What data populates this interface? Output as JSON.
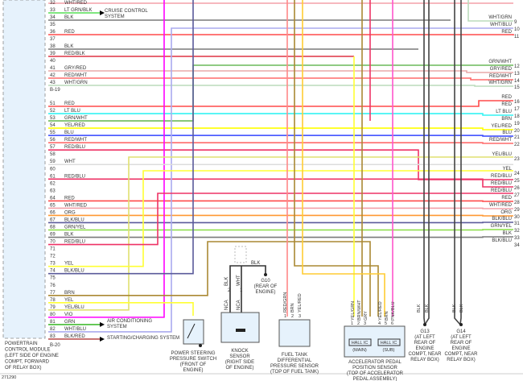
{
  "pcm": {
    "label_lines": [
      "POWERTRAIN",
      "CONTROL MODULE",
      "(LEFT SIDE OF ENGINE",
      "COMPT, FORWARD",
      "OF RELAY BOX)"
    ],
    "connectors": [
      "B-19",
      "B-20"
    ],
    "pins_a": [
      {
        "pin": "32",
        "wire": "WHT/RED"
      },
      {
        "pin": "33",
        "wire": "LT GRN/BLK"
      },
      {
        "pin": "34",
        "wire": "BLK"
      },
      {
        "pin": "35",
        "wire": ""
      },
      {
        "pin": "36",
        "wire": "RED"
      },
      {
        "pin": "37",
        "wire": ""
      },
      {
        "pin": "38",
        "wire": "BLK"
      },
      {
        "pin": "39",
        "wire": "RED/BLK"
      },
      {
        "pin": "40",
        "wire": ""
      },
      {
        "pin": "41",
        "wire": "GRY/RED"
      },
      {
        "pin": "42",
        "wire": "RED/WHT"
      },
      {
        "pin": "43",
        "wire": "WHT/GRN"
      }
    ],
    "pins_b": [
      {
        "pin": "51",
        "wire": "RED"
      },
      {
        "pin": "52",
        "wire": "LT BLU"
      },
      {
        "pin": "53",
        "wire": "GRN/WHT"
      },
      {
        "pin": "54",
        "wire": "YEL/RED"
      },
      {
        "pin": "55",
        "wire": "BLU"
      },
      {
        "pin": "56",
        "wire": "RED/WHT"
      },
      {
        "pin": "57",
        "wire": "RED/BLU"
      },
      {
        "pin": "58",
        "wire": ""
      },
      {
        "pin": "59",
        "wire": "WHT"
      },
      {
        "pin": "60",
        "wire": ""
      },
      {
        "pin": "61",
        "wire": "RED/BLU"
      },
      {
        "pin": "62",
        "wire": ""
      },
      {
        "pin": "63",
        "wire": ""
      },
      {
        "pin": "64",
        "wire": "RED"
      },
      {
        "pin": "65",
        "wire": "WHT/RED"
      },
      {
        "pin": "66",
        "wire": "ORG"
      },
      {
        "pin": "67",
        "wire": "BLK/BLU"
      },
      {
        "pin": "68",
        "wire": "GRN/YEL"
      },
      {
        "pin": "69",
        "wire": "BLK"
      },
      {
        "pin": "70",
        "wire": "RED/BLU"
      },
      {
        "pin": "71",
        "wire": ""
      },
      {
        "pin": "72",
        "wire": ""
      },
      {
        "pin": "73",
        "wire": "YEL"
      },
      {
        "pin": "74",
        "wire": "BLK/BLU"
      },
      {
        "pin": "75",
        "wire": ""
      },
      {
        "pin": "76",
        "wire": ""
      },
      {
        "pin": "77",
        "wire": "BRN"
      },
      {
        "pin": "78",
        "wire": "YEL"
      },
      {
        "pin": "79",
        "wire": "YEL/BLU"
      },
      {
        "pin": "80",
        "wire": "VIO"
      },
      {
        "pin": "81",
        "wire": "GRN"
      },
      {
        "pin": "82",
        "wire": "WHT/BLU"
      },
      {
        "pin": "83",
        "wire": "BLK/RED"
      }
    ]
  },
  "right_pins": [
    {
      "pin": "9",
      "wire": "WHT/GRN"
    },
    {
      "pin": "10",
      "wire": "WHT/BLU"
    },
    {
      "pin": "11",
      "wire": "RED"
    },
    {
      "pin": "12",
      "wire": "GRN/WHT"
    },
    {
      "pin": "13",
      "wire": "GRY/RED"
    },
    {
      "pin": "14",
      "wire": "RED/WHT"
    },
    {
      "pin": "15",
      "wire": "WHT/GRN"
    },
    {
      "pin": "16",
      "wire": "RED"
    },
    {
      "pin": "17",
      "wire": "RED"
    },
    {
      "pin": "18",
      "wire": "LT BLU"
    },
    {
      "pin": "19",
      "wire": "BRN"
    },
    {
      "pin": "20",
      "wire": "YEL/RED"
    },
    {
      "pin": "21",
      "wire": "BLU"
    },
    {
      "pin": "22",
      "wire": "RED/WHT"
    },
    {
      "pin": "23",
      "wire": "YEL/BLU"
    },
    {
      "pin": "24",
      "wire": "YEL"
    },
    {
      "pin": "25",
      "wire": "RED/BLU"
    },
    {
      "pin": "26",
      "wire": "RED/BLU"
    },
    {
      "pin": "27",
      "wire": "RED/BLU"
    },
    {
      "pin": "28",
      "wire": "RED"
    },
    {
      "pin": "29",
      "wire": "WHT/RED"
    },
    {
      "pin": "30",
      "wire": "ORG"
    },
    {
      "pin": "31",
      "wire": "BLK/BLU"
    },
    {
      "pin": "32",
      "wire": "GRN/YEL"
    },
    {
      "pin": "33",
      "wire": "BLK"
    },
    {
      "pin": "34",
      "wire": "BLK/BLU"
    }
  ],
  "systems": {
    "cruise": [
      "CRUISE CONTROL",
      "SYSTEM"
    ],
    "ac": [
      "AIR CONDITIONING",
      "SYSTEM"
    ],
    "starting": [
      "STARTING/CHARGING SYSTEM"
    ]
  },
  "components": {
    "ps_switch": [
      "POWER STEERING",
      "PRESSURE SWITCH",
      "(FRONT OF",
      "ENGINE)"
    ],
    "knock": [
      "KNOCK",
      "SENSOR",
      "(RIGHT SIDE",
      "OF ENGINE)"
    ],
    "knock_wires": {
      "blk": "BLK",
      "wht": "WHT",
      "nca1": "NCA",
      "nca2": "NCA",
      "blk2": "BLK",
      "p2": "2",
      "p1": "1"
    },
    "g10": [
      "G10",
      "(REAR OF",
      "ENGINE)"
    ],
    "fuel": [
      "FUEL TANK",
      "DIFFERENTIAL",
      "PRESSURE SENSOR",
      "(TOP OF FUEL TANK)"
    ],
    "fuel_wires": [
      "RED/GRN",
      "BRN",
      "YEL/RED"
    ],
    "fuel_pins": [
      "1",
      "2",
      "3"
    ],
    "app": [
      "ACCELERATOR PEDAL",
      "POSITION SENSOR",
      "(TOP OF ACCELERATOR",
      "PEDAL ASSEMBLY)"
    ],
    "app_wires": [
      "YEL/GRN",
      "BRN/WHT",
      "GRY",
      "YEL/RED",
      "BRN",
      "PNK/BLU"
    ],
    "app_pins": [
      "1",
      "2",
      "3",
      "4",
      "5",
      "6"
    ],
    "hall_main": [
      "HALL IC",
      "(MAIN)"
    ],
    "hall_sub": [
      "HALL IC",
      "(SUB)"
    ],
    "g13": [
      "G13",
      "(AT LEFT",
      "REAR OF",
      "ENGINE",
      "COMPT, NEAR",
      "RELAY BOX)"
    ],
    "g14": [
      "G14",
      "(AT LEFT",
      "REAR OF",
      "ENGINE",
      "COMPT, NEAR",
      "RELAY BOX)"
    ],
    "ground_wires": [
      "BLK",
      "BLK",
      "BLK",
      "BLK"
    ]
  },
  "figure_id": "271290",
  "wire_colors": {
    "RED": "#ff4a4a",
    "BLK": "#7a7a7a",
    "LT GRN/BLK": "#55dd55",
    "GRY/RED": "#e8a8a8",
    "RED/WHT": "#ff6a6a",
    "WHT/GRN": "#bcdcbc",
    "LT BLU": "#33f3f3",
    "GRN/WHT": "#6cba5a",
    "YEL/RED": "#ffff00",
    "BLU": "#3344ff",
    "RED/BLU": "#ee3366",
    "WHT": "#dddddd",
    "ORG": "#ff9933",
    "BLK/BLU": "#5a5a9a",
    "GRN/YEL": "#88dd44",
    "YEL": "#ffff33",
    "BRN": "#aa8833",
    "YEL/BLU": "#e0e070",
    "VIO": "#ff00ff",
    "GRN": "#44bb33",
    "WHT/BLU": "#aaaaee",
    "BLK/RED": "#bb5555",
    "RED/BLK": "#dd3344",
    "WHT/RED": "#f4a0a8"
  }
}
